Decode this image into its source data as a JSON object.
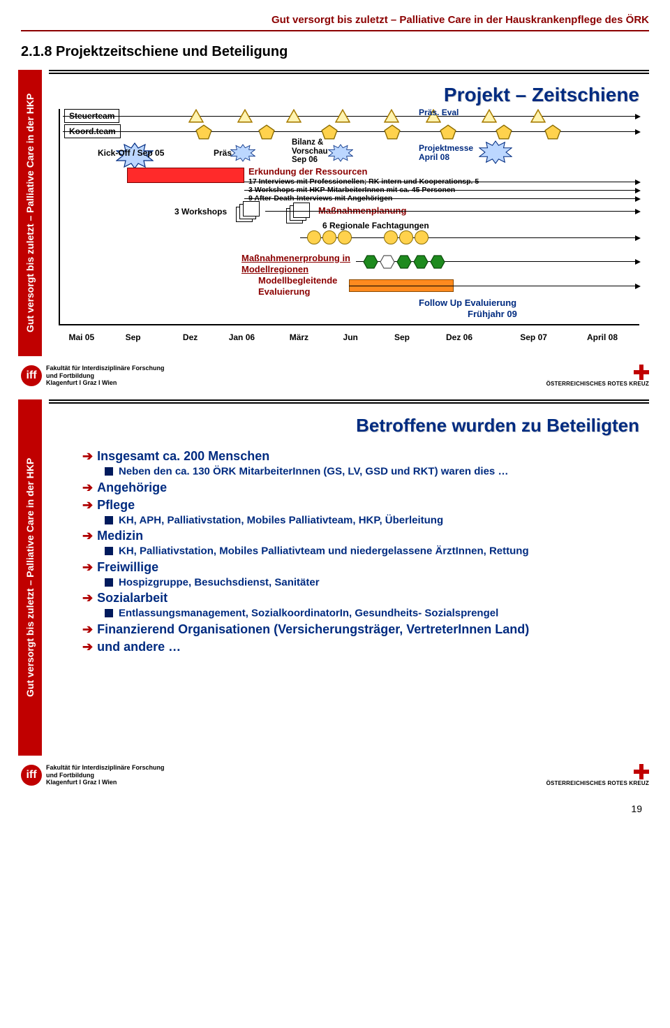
{
  "header": "Gut versorgt bis zuletzt – Palliative Care in der Hauskrankenpflege des ÖRK",
  "section_number": "2.1.8  Projektzeitschiene und Beteiligung",
  "sidebar_text": "Gut versorgt bis zuletzt – Palliative Care in der HKP",
  "page_number": "19",
  "colors": {
    "accent": "#8b0000",
    "primary": "#002b80",
    "sidebar": "#c00000",
    "triangle_fill": "#fff3b0",
    "triangle_stroke": "#a87c00",
    "pentagon_fill": "#ffd24d",
    "pentagon_stroke": "#8a6b00",
    "hex_fill": "#1e8a1e",
    "hex_stroke": "#0b4a0b",
    "starburst_fill": "#bcd7ff",
    "starburst_stroke": "#002b80",
    "orange": "#ff8a1f",
    "red": "#ff2a2a",
    "circle_fill": "#ffd24d"
  },
  "slide1": {
    "title": "Projekt – Zeitschiene",
    "left_box_1": "Steuerteam",
    "left_box_2": "Koord.team",
    "kickoff": "Kick-Off / Sep 05",
    "pras": "Präs",
    "bilanz": "Bilanz &\nVorschau\nSep 06",
    "pras_eval": "Präs. Eval",
    "projektmesse": "Projektmesse\nApril 08",
    "erk_title": "Erkundung der Ressourcen",
    "erk_sub1": "17 Interviews mit Professionellen; RK intern und Kooperationsp. 5",
    "erk_sub2": "3 Workshops mit HKP-MitarbeiterInnen mit ca. 45 Personen",
    "erk_sub3": "9 After-Death-Interviews mit Angehörigen",
    "workshops3": "3 Workshops",
    "massnplanung": "Maßnahmenplanung",
    "fachtagungen": "6 Regionale Fachtagungen",
    "erprobung1": "Maßnahmenerprobung in",
    "erprobung2": "Modellregionen",
    "model_eval1": "Modellbegleitende",
    "model_eval2": "Evaluierung",
    "followup1": "Follow Up Evaluierung",
    "followup2": "Frühjahr 09",
    "ticks": [
      {
        "pos": 4,
        "label": "Mai 05"
      },
      {
        "pos": 13,
        "label": "Sep"
      },
      {
        "pos": 23,
        "label": "Dez"
      },
      {
        "pos": 32,
        "label": "Jan 06"
      },
      {
        "pos": 42,
        "label": "März"
      },
      {
        "pos": 51,
        "label": "Jun"
      },
      {
        "pos": 60,
        "label": "Sep"
      },
      {
        "pos": 70,
        "label": "Dez 06"
      },
      {
        "pos": 83,
        "label": "Sep 07"
      },
      {
        "pos": 95,
        "label": "April 08"
      }
    ]
  },
  "footer": {
    "iff": "iff",
    "line1": "Fakultät für Interdisziplinäre Forschung",
    "line2": "und Fortbildung",
    "line3": "Klagenfurt I Graz I Wien",
    "ork": "ÖSTERREICHISCHES ROTES KREUZ"
  },
  "slide2": {
    "title": "Betroffene wurden zu Beteiligten",
    "items": [
      {
        "t": "Insgesamt ca. 200 Menschen",
        "sub": [
          "Neben den ca. 130 ÖRK MitarbeiterInnen (GS, LV, GSD und RKT) waren dies …"
        ]
      },
      {
        "t": "Angehörige",
        "sub": []
      },
      {
        "t": "Pflege",
        "sub": [
          "KH, APH, Palliativstation, Mobiles Palliativteam, HKP, Überleitung"
        ]
      },
      {
        "t": "Medizin",
        "sub": [
          "KH, Palliativstation, Mobiles Palliativteam und niedergelassene ÄrztInnen, Rettung"
        ]
      },
      {
        "t": "Freiwillige",
        "sub": [
          "Hospizgruppe, Besuchsdienst, Sanitäter"
        ]
      },
      {
        "t": "Sozialarbeit",
        "sub": [
          "Entlassungsmanagement, SozialkoordinatorIn, Gesundheits- Sozialsprengel"
        ]
      },
      {
        "t": "Finanzierend Organisationen (Versicherungsträger, VertreterInnen Land)",
        "sub": []
      },
      {
        "t": "und andere …",
        "sub": []
      }
    ]
  }
}
